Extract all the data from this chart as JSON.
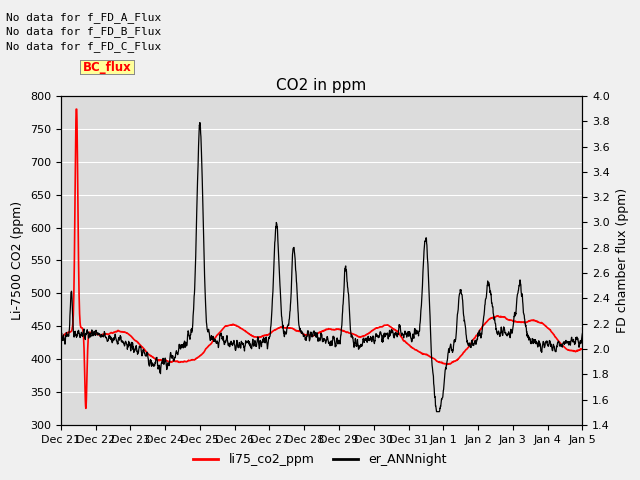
{
  "title": "CO2 in ppm",
  "ylabel_left": "Li-7500 CO2 (ppm)",
  "ylabel_right": "FD chamber flux (ppm)",
  "ylim_left": [
    300,
    800
  ],
  "ylim_right": [
    1.4,
    4.0
  ],
  "yticks_left": [
    300,
    350,
    400,
    450,
    500,
    550,
    600,
    650,
    700,
    750,
    800
  ],
  "yticks_right": [
    1.4,
    1.6,
    1.8,
    2.0,
    2.2,
    2.4,
    2.6,
    2.8,
    3.0,
    3.2,
    3.4,
    3.6,
    3.8,
    4.0
  ],
  "xtick_labels": [
    "Dec 21",
    "Dec 22",
    "Dec 23",
    "Dec 24",
    "Dec 25",
    "Dec 26",
    "Dec 27",
    "Dec 28",
    "Dec 29",
    "Dec 30",
    "Dec 31",
    "Jan 1",
    "Jan 2",
    "Jan 3",
    "Jan 4",
    "Jan 5"
  ],
  "color_red": "#FF0000",
  "color_black": "#000000",
  "plot_bg_color": "#DCDCDC",
  "fig_bg_color": "#F0F0F0",
  "legend_items": [
    "li75_co2_ppm",
    "er_ANNnight"
  ],
  "no_data_texts": [
    "No data for f_FD_A_Flux",
    "No data for f_FD_B_Flux",
    "No data for f_FD_C_Flux"
  ],
  "bc_flux_label": "BC_flux",
  "title_fontsize": 11,
  "axis_label_fontsize": 9,
  "tick_fontsize": 8,
  "text_fontsize": 8
}
